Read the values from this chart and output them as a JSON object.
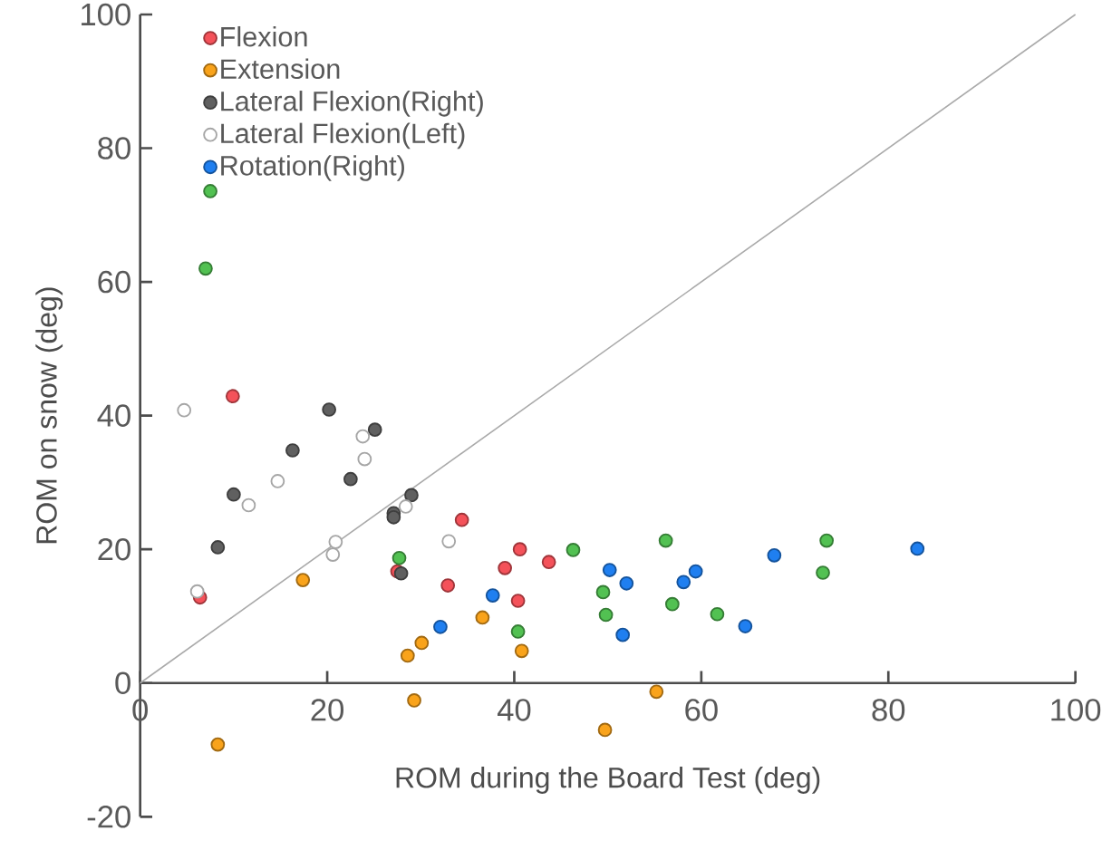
{
  "chart_data": {
    "type": "scatter",
    "xlabel": "ROM during the Board Test (deg)",
    "ylabel": "ROM on snow (deg)",
    "xlim": [
      0,
      100
    ],
    "ylim": [
      -20,
      100
    ],
    "xticks": [
      0,
      20,
      40,
      60,
      80,
      100
    ],
    "yticks": [
      -20,
      0,
      20,
      40,
      60,
      80,
      100
    ],
    "grid": false,
    "legend": "top left",
    "series": [
      {
        "name": "Flexion",
        "color": "#f4525a",
        "x": [
          9.9,
          6.4,
          34.4,
          27.5,
          32.9,
          39,
          40.6,
          40.4,
          43.7
        ],
        "values": [
          42.9,
          12.8,
          24.4,
          16.7,
          14.6,
          17.2,
          20,
          12.3,
          18.1
        ]
      },
      {
        "name": "Extension",
        "color": "#f9a31b",
        "x": [
          17.4,
          8.3,
          28.6,
          30.1,
          36.6,
          40.8,
          29.3,
          55.2,
          49.7
        ],
        "values": [
          15.4,
          -9.2,
          4.1,
          6.0,
          9.8,
          4.8,
          -2.6,
          -1.3,
          -7.0
        ]
      },
      {
        "name": "Lateral Flexion(Right)",
        "color": "#606060",
        "x": [
          8.3,
          10,
          16.3,
          20.2,
          22.5,
          25.1,
          27.1,
          27.1,
          29,
          27.9
        ],
        "values": [
          20.3,
          28.2,
          34.8,
          40.9,
          30.5,
          37.9,
          25.4,
          24.8,
          28.1,
          16.4
        ]
      },
      {
        "name": "Lateral Flexion(Left)",
        "color": "#ffffff",
        "x": [
          4.7,
          6.1,
          11.6,
          14.7,
          20.6,
          20.9,
          23.8,
          24,
          28.4,
          33
        ],
        "values": [
          40.8,
          13.7,
          26.6,
          30.2,
          19.2,
          21.1,
          36.9,
          33.5,
          26.4,
          21.2
        ]
      },
      {
        "name": "Rotation(Right)",
        "color": "#1f7ff0",
        "x": [
          32.1,
          37.7,
          50.2,
          52,
          51.6,
          58.1,
          59.4,
          64.7,
          67.8,
          83.1
        ],
        "values": [
          8.4,
          13.1,
          16.9,
          14.9,
          7.2,
          15.1,
          16.7,
          8.5,
          19.1,
          20.1
        ]
      },
      {
        "color": "#52c152",
        "x": [
          7,
          27.7,
          40.4,
          46.3,
          56.2,
          49.5,
          49.8,
          56.9,
          61.7,
          73.4,
          73
        ],
        "values": [
          62,
          18.7,
          7.7,
          19.9,
          21.3,
          13.6,
          10.2,
          11.8,
          10.3,
          21.3,
          16.5
        ]
      },
      {
        "type": "line",
        "color": "#aaaaaa",
        "x": [
          0,
          100
        ],
        "values": [
          0,
          100
        ]
      }
    ]
  }
}
